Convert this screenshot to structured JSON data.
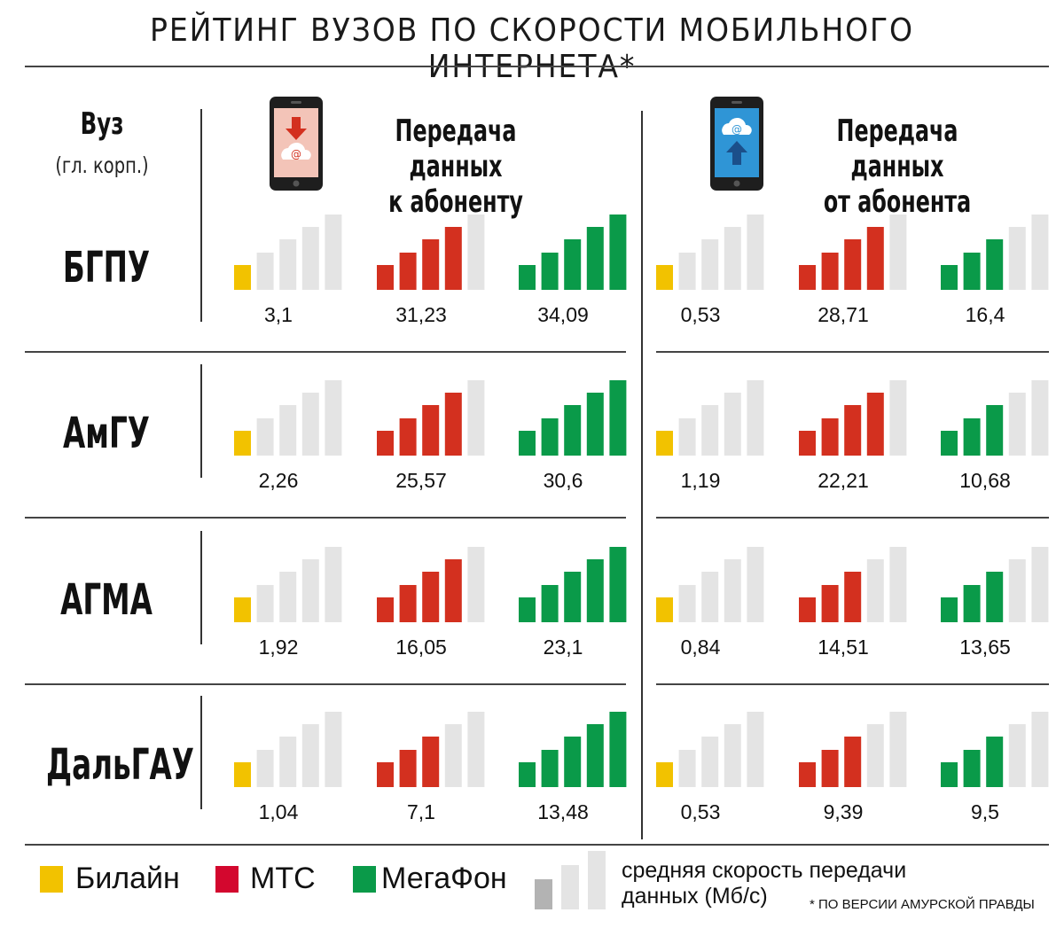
{
  "title": "РЕЙТИНГ ВУЗОВ ПО СКОРОСТИ МОБИЛЬНОГО ИНТЕРНЕТА*",
  "header": {
    "vuz": "Вуз",
    "vuz_sub": "(гл. корп.)",
    "download_line1": "Передача данных",
    "download_line2": "к абоненту",
    "upload_line1": "Передача данных",
    "upload_line2": "от абонента"
  },
  "colors": {
    "beeline": "#f2c200",
    "mts": "#d3301f",
    "megafon": "#0a9a49",
    "inactive_bar": "#e4e4e4",
    "legend_bar_dark": "#b3b3b3"
  },
  "legend": {
    "beeline": "Билайн",
    "mts": "МТС",
    "megafon": "МегаФон",
    "description": "средняя скорость передачи данных (Мб/с)",
    "footnote": "* ПО ВЕРСИИ АМУРСКОЙ ПРАВДЫ"
  },
  "chart_data": {
    "type": "table",
    "title": "РЕЙТИНГ ВУЗОВ ПО СКОРОСТИ МОБИЛЬНОГО ИНТЕРНЕТА*",
    "unit": "Мб/с",
    "operators": [
      "Билайн",
      "МТС",
      "МегаФон"
    ],
    "directions": [
      "Передача данных к абоненту",
      "Передача данных от абонента"
    ],
    "rows": [
      {
        "university": "БГПУ",
        "download": {
          "values": [
            "3,1",
            "31,23",
            "34,09"
          ],
          "bars": [
            1,
            4,
            5
          ]
        },
        "upload": {
          "values": [
            "0,53",
            "28,71",
            "16,4"
          ],
          "bars": [
            1,
            4,
            3
          ]
        }
      },
      {
        "university": "АмГУ",
        "download": {
          "values": [
            "2,26",
            "25,57",
            "30,6"
          ],
          "bars": [
            1,
            4,
            5
          ]
        },
        "upload": {
          "values": [
            "1,19",
            "22,21",
            "10,68"
          ],
          "bars": [
            1,
            4,
            3
          ]
        }
      },
      {
        "university": "АГМА",
        "download": {
          "values": [
            "1,92",
            "16,05",
            "23,1"
          ],
          "bars": [
            1,
            4,
            5
          ]
        },
        "upload": {
          "values": [
            "0,84",
            "14,51",
            "13,65"
          ],
          "bars": [
            1,
            3,
            3
          ]
        }
      },
      {
        "university": "ДальГАУ",
        "download": {
          "values": [
            "1,04",
            "7,1",
            "13,48"
          ],
          "bars": [
            1,
            3,
            5
          ]
        },
        "upload": {
          "values": [
            "0,53",
            "9,39",
            "9,5"
          ],
          "bars": [
            1,
            3,
            3
          ]
        }
      }
    ]
  }
}
